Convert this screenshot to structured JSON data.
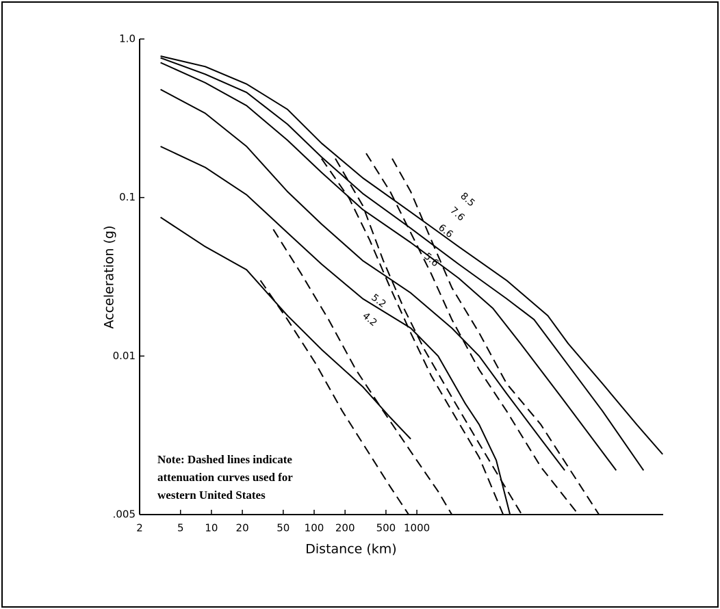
{
  "chart_data": {
    "type": "line",
    "xlabel": "Distance (km)",
    "ylabel": "Acceleration (g)",
    "log_x": true,
    "log_y": true,
    "xlim": [
      2,
      250000
    ],
    "ylim": [
      0.001,
      1
    ],
    "xticks": [
      2,
      5,
      10,
      20,
      50,
      100,
      200,
      500,
      1000
    ],
    "yticks": [
      {
        "value": 1,
        "label": "1.0"
      },
      0.1,
      0.01
    ],
    "y_axis_end_label": ".005",
    "note": [
      "Note: Dashed lines indicate",
      "attenuation curves used for",
      "western United States"
    ],
    "series": [
      {
        "name": "8.5",
        "color": "#000",
        "dashed": false,
        "x": [
          3.2,
          8.7,
          22,
          55,
          118,
          297,
          871,
          2550,
          7470,
          18800,
          29700,
          64100,
          138000,
          247000
        ],
        "values": [
          0.78,
          0.67,
          0.52,
          0.36,
          0.22,
          0.133,
          0.081,
          0.049,
          0.03,
          0.018,
          0.012,
          0.0067,
          0.0037,
          0.0024
        ]
      },
      {
        "name": "7.6",
        "color": "#000",
        "dashed": false,
        "x": [
          3.2,
          8.7,
          22,
          55,
          118,
          297,
          871,
          2550,
          7470,
          13800,
          25500,
          64100,
          161000
        ],
        "values": [
          0.76,
          0.6,
          0.46,
          0.29,
          0.18,
          0.106,
          0.064,
          0.038,
          0.023,
          0.017,
          0.01,
          0.0045,
          0.0019
        ]
      },
      {
        "name": "6.6",
        "color": "#000",
        "dashed": false,
        "x": [
          3.2,
          8.7,
          22,
          55,
          118,
          297,
          871,
          2550,
          5500,
          10200,
          25500,
          87100
        ],
        "values": [
          0.71,
          0.53,
          0.38,
          0.23,
          0.144,
          0.084,
          0.052,
          0.031,
          0.02,
          0.012,
          0.0055,
          0.0019
        ]
      },
      {
        "name": "5.6",
        "color": "#000",
        "dashed": false,
        "x": [
          3.2,
          8.7,
          22,
          55,
          118,
          297,
          871,
          2190,
          4040,
          7470,
          16100,
          27500
        ],
        "values": [
          0.48,
          0.34,
          0.21,
          0.109,
          0.068,
          0.04,
          0.025,
          0.015,
          0.01,
          0.0058,
          0.003,
          0.0019
        ]
      },
      {
        "name": "5.2",
        "color": "#000",
        "dashed": false,
        "x": [
          3.2,
          8.7,
          22,
          55,
          118,
          297,
          871,
          1610,
          2970,
          4040,
          5930,
          8070
        ],
        "values": [
          0.21,
          0.155,
          0.104,
          0.06,
          0.038,
          0.023,
          0.015,
          0.01,
          0.005,
          0.0037,
          0.0022,
          0.001
        ]
      },
      {
        "name": "4.2",
        "color": "#000",
        "dashed": false,
        "x": [
          3.2,
          8.7,
          22,
          55,
          118,
          297,
          550,
          871
        ],
        "values": [
          0.075,
          0.049,
          0.035,
          0.018,
          0.011,
          0.0064,
          0.0041,
          0.003
        ]
      },
      {
        "color": "#000",
        "dashed": true,
        "x": [
          30,
          55,
          102,
          188,
          347,
          550,
          832
        ],
        "values": [
          0.03,
          0.017,
          0.0091,
          0.0045,
          0.0024,
          0.0015,
          0.001
        ]
      },
      {
        "color": "#000",
        "dashed": true,
        "x": [
          40,
          75,
          138,
          255,
          471,
          871,
          1610,
          2190
        ],
        "values": [
          0.063,
          0.033,
          0.017,
          0.0082,
          0.0045,
          0.0025,
          0.0014,
          0.001
        ]
      },
      {
        "color": "#000",
        "dashed": true,
        "x": [
          118,
          219,
          347,
          550,
          871,
          1380,
          2190,
          4040,
          6920
        ],
        "values": [
          0.176,
          0.099,
          0.054,
          0.027,
          0.014,
          0.0075,
          0.0045,
          0.0023,
          0.001
        ]
      },
      {
        "color": "#000",
        "dashed": true,
        "x": [
          161,
          297,
          471,
          747,
          1183,
          2190,
          4040,
          6410,
          10500
        ],
        "values": [
          0.176,
          0.089,
          0.04,
          0.02,
          0.011,
          0.0055,
          0.0028,
          0.0017,
          0.001
        ]
      },
      {
        "color": "#000",
        "dashed": true,
        "x": [
          321,
          550,
          871,
          1380,
          2190,
          4040,
          7470,
          16100,
          37400
        ],
        "values": [
          0.19,
          0.109,
          0.06,
          0.033,
          0.017,
          0.0082,
          0.0045,
          0.002,
          0.001
        ]
      },
      {
        "color": "#000",
        "dashed": true,
        "x": [
          575,
          871,
          1380,
          2190,
          4040,
          7470,
          16100,
          29700,
          59300
        ],
        "values": [
          0.176,
          0.109,
          0.054,
          0.027,
          0.014,
          0.0067,
          0.0037,
          0.002,
          0.001
        ]
      }
    ]
  }
}
